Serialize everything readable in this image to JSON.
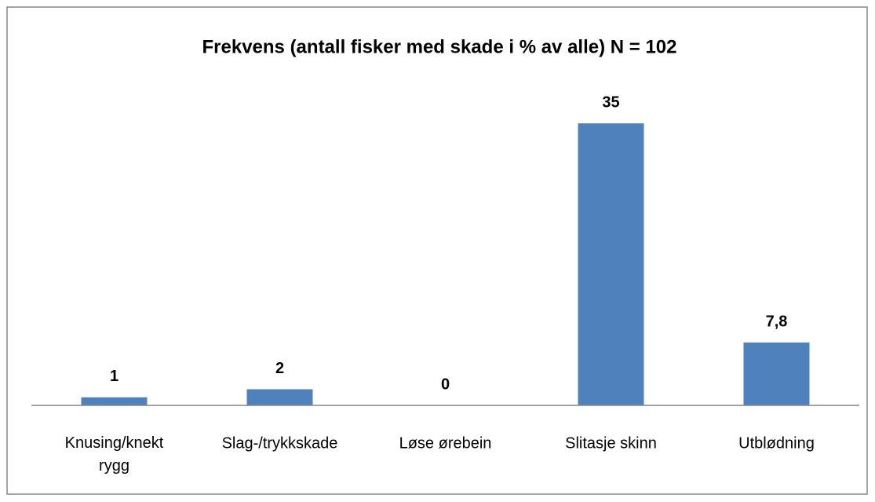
{
  "chart_data": {
    "type": "bar",
    "title": "Frekvens (antall fisker med skade i % av alle) N = 102",
    "categories": [
      "Knusing/knekt rygg",
      "Slag-/trykkskade",
      "Løse ørebein",
      "Slitasje skinn",
      "Utblødning"
    ],
    "values": [
      1,
      2,
      0,
      35,
      7.8
    ],
    "value_labels": [
      "1",
      "2",
      "0",
      "35",
      "7,8"
    ],
    "color": "#4f81bd"
  }
}
